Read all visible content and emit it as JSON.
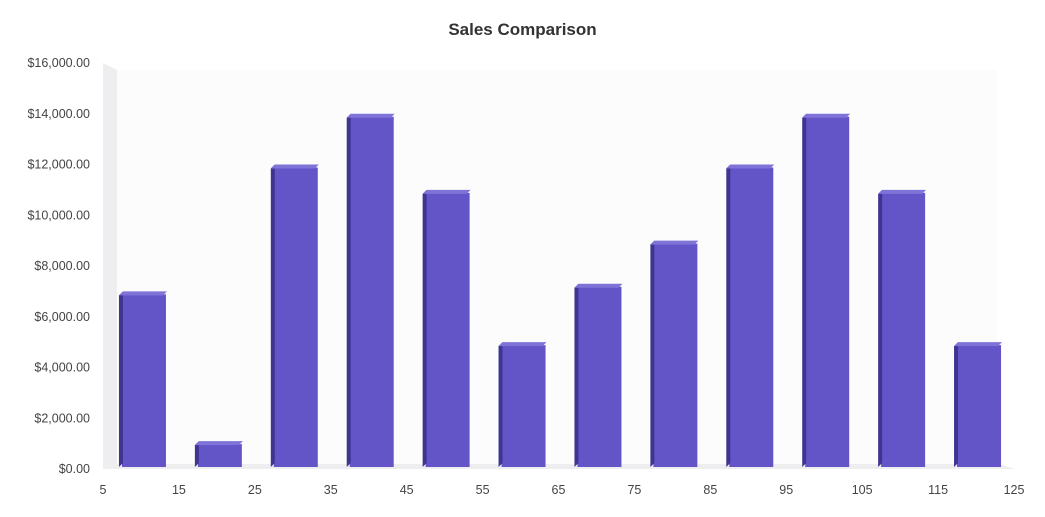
{
  "chart_data": {
    "type": "bar",
    "title": "Sales Comparison",
    "xlabel": "",
    "ylabel": "",
    "x_ticks": [
      "5",
      "15",
      "25",
      "35",
      "45",
      "55",
      "65",
      "75",
      "85",
      "95",
      "105",
      "115",
      "125"
    ],
    "y_ticks": [
      "$0.00",
      "$2,000.00",
      "$4,000.00",
      "$6,000.00",
      "$8,000.00",
      "$10,000.00",
      "$12,000.00",
      "$14,000.00",
      "$16,000.00"
    ],
    "xlim": [
      5,
      125
    ],
    "ylim": [
      0,
      16000
    ],
    "series": [
      {
        "x": [
          10,
          20,
          30,
          40,
          50,
          60,
          70,
          80,
          90,
          100,
          110,
          120
        ],
        "values": [
          7000,
          1100,
          12000,
          14000,
          11000,
          5000,
          7300,
          9000,
          12000,
          14000,
          11000,
          5000
        ]
      }
    ],
    "colors": {
      "bar": "#6355c8",
      "bar_side": "#3f3590",
      "bar_top": "#7f73d8",
      "plot_bg": "#fcfcfd",
      "wall": "#eeeef0"
    },
    "grid": false,
    "legend": "none"
  }
}
